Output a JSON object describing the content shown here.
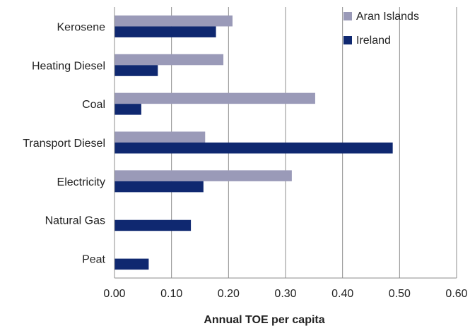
{
  "chart_data": {
    "type": "bar",
    "orientation": "horizontal",
    "categories": [
      "Kerosene",
      "Heating Diesel",
      "Coal",
      "Transport Diesel",
      "Electricity",
      "Natural Gas",
      "Peat"
    ],
    "series": [
      {
        "name": "Aran Islands",
        "color": "#9a9ab8",
        "values": [
          0.207,
          0.191,
          0.352,
          0.159,
          0.311,
          0,
          0
        ]
      },
      {
        "name": "Ireland",
        "color": "#0f2870",
        "values": [
          0.178,
          0.076,
          0.047,
          0.488,
          0.156,
          0.134,
          0.06
        ]
      }
    ],
    "xlim": [
      0,
      0.6
    ],
    "xticks": [
      "0.00",
      "0.10",
      "0.20",
      "0.30",
      "0.40",
      "0.50",
      "0.60"
    ],
    "xlabel": "Annual TOE per capita",
    "ylabel": "",
    "grid": "vertical",
    "legend": "top-right"
  }
}
